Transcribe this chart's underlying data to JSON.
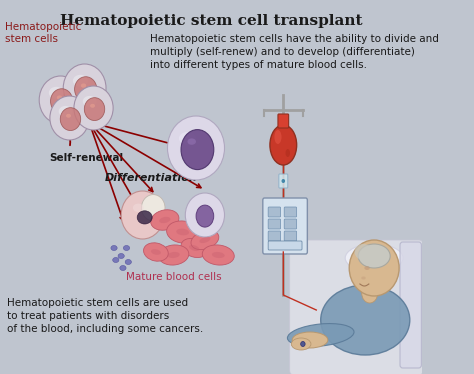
{
  "title": "Hematopoietic stem cell transplant",
  "top_right_text": "Hematopoietic stem cells have the ability to divide and\nmultiply (self-renew) and to develop (differentiate)\ninto different types of mature blood cells.",
  "bottom_left_text": "Hematopoietic stem cells are used\nto treat patients with disorders\nof the blood, including some cancers.",
  "label_stem_cells": "Hematopoietic\nstem cells",
  "label_self_renewal": "Self-renewal",
  "label_differentiation": "Differentiation",
  "label_mature_blood": "Mature blood cells",
  "bg_color": "#bfc5cf",
  "title_color": "#1a1a1a",
  "stem_label_color": "#8b1a1a",
  "body_text_color": "#1a1a1a",
  "mature_label_color": "#b03050",
  "arrow_color": "#8b0000",
  "title_fontsize": 11,
  "body_fontsize": 7.5,
  "label_fontsize": 7.5,
  "diff_fontsize": 8
}
